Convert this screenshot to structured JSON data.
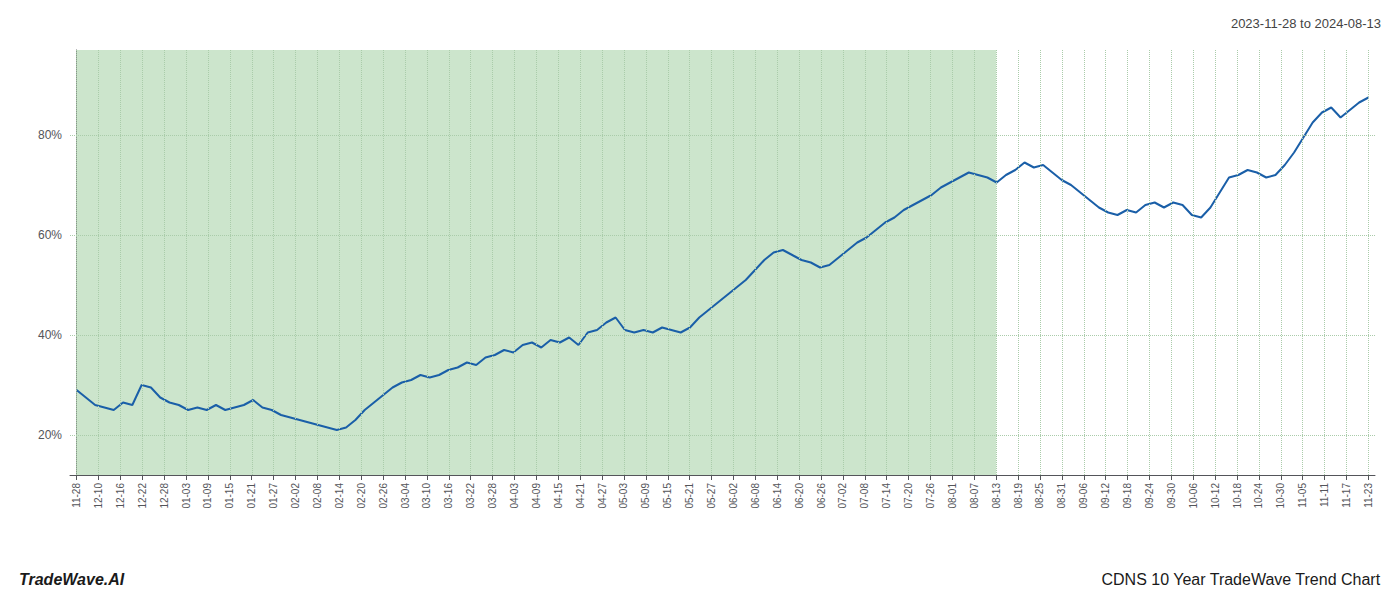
{
  "chart_data": {
    "type": "line",
    "title": "2023-11-28 to 2024-08-13",
    "annotations": [
      "TradeWave.AI",
      "CDNS 10 Year TradeWave Trend Chart"
    ],
    "color": "#1a5fa8",
    "grid": true,
    "x": [
      0,
      1,
      2,
      3,
      4,
      5,
      6,
      7,
      8,
      9,
      10,
      11,
      12,
      13,
      14,
      15,
      16,
      17,
      18,
      19,
      20,
      21,
      22,
      23,
      24,
      25,
      26,
      27,
      28,
      29,
      30,
      31,
      32,
      33,
      34,
      35,
      36,
      37,
      38,
      39,
      40,
      41,
      42,
      43,
      44,
      45,
      46,
      47,
      48,
      49,
      50,
      51,
      52,
      53,
      54,
      55,
      56,
      57,
      58,
      59,
      60,
      61,
      62,
      63,
      64,
      65,
      66,
      67,
      68,
      69,
      70,
      71,
      72,
      73,
      74,
      75,
      76,
      77,
      78,
      79,
      80,
      81,
      82,
      83,
      84,
      85,
      86,
      87,
      88,
      89,
      90,
      91,
      92,
      93,
      94,
      95,
      96,
      97,
      98,
      99,
      100,
      101,
      102,
      103,
      104,
      105,
      106,
      107,
      108,
      109,
      110,
      111,
      112,
      113,
      114,
      115,
      116,
      117,
      118,
      119,
      120,
      121,
      122,
      123,
      124,
      125,
      126,
      127,
      128,
      129,
      130,
      131,
      132,
      133,
      134,
      135,
      136,
      137,
      138,
      139
    ],
    "values": [
      29.0,
      27.5,
      26.0,
      25.5,
      25.0,
      26.5,
      26.0,
      30.0,
      29.5,
      27.5,
      26.5,
      26.0,
      25.0,
      25.5,
      25.0,
      26.0,
      25.0,
      25.5,
      26.0,
      27.0,
      25.5,
      25.0,
      24.0,
      23.5,
      23.0,
      22.5,
      22.0,
      21.5,
      21.0,
      21.5,
      23.0,
      25.0,
      26.5,
      28.0,
      29.5,
      30.5,
      31.0,
      32.0,
      31.5,
      32.0,
      33.0,
      33.5,
      34.5,
      34.0,
      35.5,
      36.0,
      37.0,
      36.5,
      38.0,
      38.5,
      37.5,
      39.0,
      38.5,
      39.5,
      38.0,
      40.5,
      41.0,
      42.5,
      43.5,
      41.0,
      40.5,
      41.0,
      40.5,
      41.5,
      41.0,
      40.5,
      41.5,
      43.5,
      45.0,
      46.5,
      48.0,
      49.5,
      51.0,
      53.0,
      55.0,
      56.5,
      57.0,
      56.0,
      55.0,
      54.5,
      53.5,
      54.0,
      55.5,
      57.0,
      58.5,
      59.5,
      61.0,
      62.5,
      63.5,
      65.0,
      66.0,
      67.0,
      68.0,
      69.5,
      70.5,
      71.5,
      72.5,
      72.0,
      71.5,
      70.5,
      72.0,
      73.0,
      74.5,
      73.5,
      74.0,
      72.5,
      71.0,
      70.0,
      68.5,
      67.0,
      65.5,
      64.5,
      64.0,
      65.0,
      64.5,
      66.0,
      66.5,
      65.5,
      66.5,
      66.0,
      64.0,
      63.5,
      65.5,
      68.5,
      71.5,
      72.0,
      73.0,
      72.5,
      71.5,
      72.0,
      74.0,
      76.5,
      79.5,
      82.5,
      84.5,
      85.5,
      83.5,
      85.0,
      86.5,
      87.5
    ],
    "xlim": [
      -0.7068,
      139.7068
    ],
    "xticks": [
      {
        "value": 0,
        "label": "11-28"
      },
      {
        "value": 2.3559,
        "label": "12-10"
      },
      {
        "value": 4.7119,
        "label": "12-16"
      },
      {
        "value": 7.0678,
        "label": "12-22"
      },
      {
        "value": 9.4237,
        "label": "12-28"
      },
      {
        "value": 11.7797,
        "label": "01-03"
      },
      {
        "value": 14.1356,
        "label": "01-09"
      },
      {
        "value": 16.4915,
        "label": "01-15"
      },
      {
        "value": 18.8475,
        "label": "01-21"
      },
      {
        "value": 21.2034,
        "label": "01-27"
      },
      {
        "value": 23.5593,
        "label": "02-02"
      },
      {
        "value": 25.9153,
        "label": "02-08"
      },
      {
        "value": 28.2712,
        "label": "02-14"
      },
      {
        "value": 30.6271,
        "label": "02-20"
      },
      {
        "value": 32.9831,
        "label": "02-26"
      },
      {
        "value": 35.339,
        "label": "03-04"
      },
      {
        "value": 37.6949,
        "label": "03-10"
      },
      {
        "value": 40.0508,
        "label": "03-16"
      },
      {
        "value": 42.4068,
        "label": "03-22"
      },
      {
        "value": 44.7627,
        "label": "03-28"
      },
      {
        "value": 47.1186,
        "label": "04-03"
      },
      {
        "value": 49.4746,
        "label": "04-09"
      },
      {
        "value": 51.8305,
        "label": "04-15"
      },
      {
        "value": 54.1864,
        "label": "04-21"
      },
      {
        "value": 56.5424,
        "label": "04-27"
      },
      {
        "value": 58.8983,
        "label": "05-03"
      },
      {
        "value": 61.2542,
        "label": "05-09"
      },
      {
        "value": 63.6102,
        "label": "05-15"
      },
      {
        "value": 65.9661,
        "label": "05-21"
      },
      {
        "value": 68.322,
        "label": "05-27"
      },
      {
        "value": 70.678,
        "label": "06-02"
      },
      {
        "value": 73.0339,
        "label": "06-08"
      },
      {
        "value": 75.3898,
        "label": "06-14"
      },
      {
        "value": 77.7458,
        "label": "06-20"
      },
      {
        "value": 80.1017,
        "label": "06-26"
      },
      {
        "value": 82.4576,
        "label": "07-02"
      },
      {
        "value": 84.8136,
        "label": "07-08"
      },
      {
        "value": 87.1695,
        "label": "07-14"
      },
      {
        "value": 89.5254,
        "label": "07-20"
      },
      {
        "value": 91.8814,
        "label": "07-26"
      },
      {
        "value": 94.2373,
        "label": "08-01"
      },
      {
        "value": 96.5932,
        "label": "08-07"
      },
      {
        "value": 98.9492,
        "label": "08-13"
      },
      {
        "value": 101.3051,
        "label": "08-19"
      },
      {
        "value": 103.661,
        "label": "08-25"
      },
      {
        "value": 106.0169,
        "label": "08-31"
      },
      {
        "value": 108.3729,
        "label": "09-06"
      },
      {
        "value": 110.7288,
        "label": "09-12"
      },
      {
        "value": 113.0847,
        "label": "09-18"
      },
      {
        "value": 115.4407,
        "label": "09-24"
      },
      {
        "value": 117.7966,
        "label": "09-30"
      },
      {
        "value": 120.1525,
        "label": "10-06"
      },
      {
        "value": 122.5085,
        "label": "10-12"
      },
      {
        "value": 124.8644,
        "label": "10-18"
      },
      {
        "value": 127.2203,
        "label": "10-24"
      },
      {
        "value": 129.5763,
        "label": "10-30"
      },
      {
        "value": 131.9322,
        "label": "11-05"
      },
      {
        "value": 134.2881,
        "label": "11-11"
      },
      {
        "value": 136.6441,
        "label": "11-17"
      },
      {
        "value": 139,
        "label": "11-23"
      }
    ],
    "ylim": [
      12,
      97
    ],
    "yticks": [
      {
        "value": 20,
        "label": "20%"
      },
      {
        "value": 40,
        "label": "40%"
      },
      {
        "value": 60,
        "label": "60%"
      },
      {
        "value": 80,
        "label": "80%"
      }
    ],
    "shaded_region": {
      "x": [
        0,
        98.9492
      ],
      "color": "#cce5cc"
    }
  }
}
